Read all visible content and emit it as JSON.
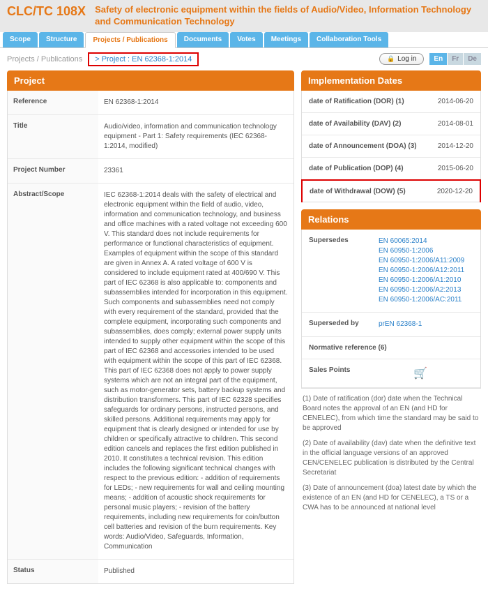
{
  "header": {
    "code": "CLC/TC 108X",
    "title": "Safety of electronic equipment within the fields of Audio/Video, Information Technology and Communication Technology"
  },
  "tabs": [
    {
      "label": "Scope",
      "active": false
    },
    {
      "label": "Structure",
      "active": false
    },
    {
      "label": "Projects / Publications",
      "active": true
    },
    {
      "label": "Documents",
      "active": false
    },
    {
      "label": "Votes",
      "active": false
    },
    {
      "label": "Meetings",
      "active": false
    },
    {
      "label": "Collaboration Tools",
      "active": false
    }
  ],
  "breadcrumb": {
    "root": "Projects / Publications",
    "current": "> Project : EN 62368-1:2014"
  },
  "login": "Log in",
  "langs": [
    "En",
    "Fr",
    "De"
  ],
  "project_panel_title": "Project",
  "fields": {
    "reference_label": "Reference",
    "reference_value": "EN 62368-1:2014",
    "title_label": "Title",
    "title_value": "Audio/video, information and communication technology equipment - Part 1: Safety requirements (IEC 62368-1:2014, modified)",
    "projnum_label": "Project Number",
    "projnum_value": "23361",
    "abstract_label": "Abstract/Scope",
    "abstract_value": "IEC 62368-1:2014 deals with the safety of electrical and electronic equipment within the field of audio, video, information and communication technology, and business and office machines with a rated voltage not exceeding 600 V. This standard does not include requirements for performance or functional characteristics of equipment. Examples of equipment within the scope of this standard are given in Annex A. A rated voltage of 600 V is considered to include equipment rated at 400/690 V. This part of IEC 62368 is also applicable to: components and subassemblies intended for incorporation in this equipment. Such components and subassemblies need not comply with every requirement of the standard, provided that the complete equipment, incorporating such components and subassemblies, does comply; external power supply units intended to supply other equipment within the scope of this part of IEC 62368 and accessories intended to be used with equipment within the scope of this part of IEC 62368. This part of IEC 62368 does not apply to power supply systems which are not an integral part of the equipment, such as motor-generator sets, battery backup systems and distribution transformers. This part of IEC 62328 specifies safeguards for ordinary persons, instructed persons, and skilled persons. Additional requirements may apply for equipment that is clearly designed or intended for use by children or specifically attractive to children. This second edition cancels and replaces the first edition published in 2010. It constitutes a technical revision. This edition includes the following significant technical changes with respect to the previous edition: - addition of requirements for LEDs; - new requirements for wall and ceiling mounting means; - addition of acoustic shock requirements for personal music players; - revision of the battery requirements, including new requirements for coin/button cell batteries and revision of the burn requirements. Key words: Audio/Video, Safeguards, Information, Communication",
    "status_label": "Status",
    "status_value": "Published"
  },
  "dates_panel_title": "Implementation Dates",
  "dates": [
    {
      "label": "date of Ratification (DOR) (1)",
      "value": "2014-06-20",
      "hl": false
    },
    {
      "label": "date of Availability (DAV) (2)",
      "value": "2014-08-01",
      "hl": false
    },
    {
      "label": "date of Announcement (DOA) (3)",
      "value": "2014-12-20",
      "hl": false
    },
    {
      "label": "date of Publication (DOP) (4)",
      "value": "2015-06-20",
      "hl": false
    },
    {
      "label": "date of Withdrawal (DOW) (5)",
      "value": "2020-12-20",
      "hl": true
    }
  ],
  "relations_panel_title": "Relations",
  "supersedes_label": "Supersedes",
  "supersedes_links": [
    "EN 60065:2014",
    "EN 60950-1:2006",
    "EN 60950-1:2006/A11:2009",
    "EN 60950-1:2006/A12:2011",
    "EN 60950-1:2006/A1:2010",
    "EN 60950-1:2006/A2:2013",
    "EN 60950-1:2006/AC:2011"
  ],
  "supersededby_label": "Superseded by",
  "supersededby_value": "prEN 62368-1",
  "normref_label": "Normative reference (6)",
  "sales_label": "Sales Points",
  "footnotes": [
    "(1) Date of ratification (dor) date when the Technical Board notes the approval of an EN (and HD for CENELEC), from which time the standard may be said to be approved",
    "(2) Date of availability (dav) date when the definitive text in the official language versions of an approved CEN/CENELEC publication is distributed by the Central Secretariat",
    "(3) Date of announcement (doa) latest date by which the existence of an EN (and HD for CENELEC), a TS or a CWA has to be announced at national level"
  ],
  "colors": {
    "accent_orange": "#e67817",
    "tab_blue": "#5bb5e8",
    "link_blue": "#2980c9",
    "highlight_red": "#d00000"
  }
}
